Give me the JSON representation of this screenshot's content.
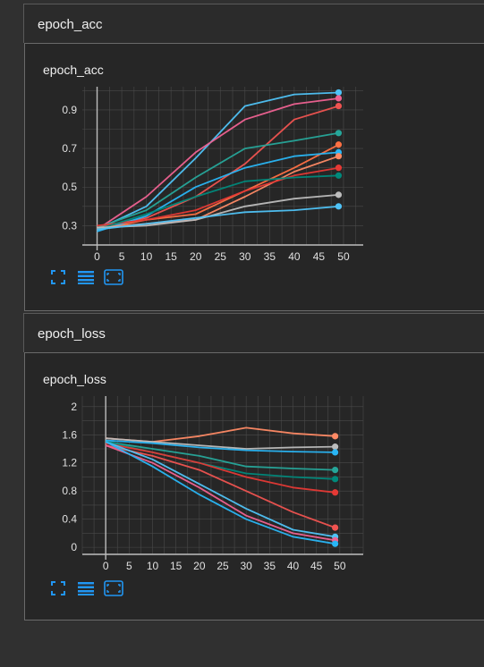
{
  "sections": [
    {
      "header": "epoch_acc",
      "card_title": "epoch_acc",
      "chart_data": {
        "type": "line",
        "title": "epoch_acc",
        "xlim": [
          -3,
          54
        ],
        "ylim": [
          0.2,
          1.02
        ],
        "xticks": [
          0,
          5,
          10,
          15,
          20,
          25,
          30,
          35,
          40,
          45,
          50
        ],
        "yticks": [
          0.3,
          0.5,
          0.7,
          0.9
        ],
        "ytick_labels": [
          "0.3",
          "0.5",
          "0.7",
          "0.9"
        ],
        "series": [
          {
            "color": "#4fc3f7",
            "x": [
              0,
              10,
              20,
              30,
              40,
              49
            ],
            "y": [
              0.28,
              0.4,
              0.65,
              0.92,
              0.98,
              0.99
            ]
          },
          {
            "color": "#f06292",
            "x": [
              0,
              10,
              20,
              30,
              40,
              49
            ],
            "y": [
              0.28,
              0.45,
              0.68,
              0.85,
              0.93,
              0.96
            ]
          },
          {
            "color": "#ef5350",
            "x": [
              0,
              10,
              20,
              30,
              40,
              49
            ],
            "y": [
              0.29,
              0.34,
              0.45,
              0.62,
              0.85,
              0.92
            ]
          },
          {
            "color": "#26a69a",
            "x": [
              0,
              10,
              20,
              30,
              40,
              49
            ],
            "y": [
              0.29,
              0.38,
              0.55,
              0.7,
              0.74,
              0.78
            ]
          },
          {
            "color": "#ff7043",
            "x": [
              0,
              10,
              20,
              30,
              40,
              49
            ],
            "y": [
              0.28,
              0.33,
              0.36,
              0.48,
              0.6,
              0.72
            ]
          },
          {
            "color": "#29b6f6",
            "x": [
              0,
              10,
              20,
              30,
              40,
              49
            ],
            "y": [
              0.27,
              0.35,
              0.5,
              0.6,
              0.66,
              0.68
            ]
          },
          {
            "color": "#ff8a65",
            "x": [
              0,
              10,
              20,
              30,
              40,
              49
            ],
            "y": [
              0.29,
              0.31,
              0.33,
              0.45,
              0.58,
              0.66
            ]
          },
          {
            "color": "#e53935",
            "x": [
              0,
              10,
              20,
              30,
              40,
              49
            ],
            "y": [
              0.3,
              0.33,
              0.38,
              0.48,
              0.56,
              0.6
            ]
          },
          {
            "color": "#00897b",
            "x": [
              0,
              10,
              20,
              30,
              40,
              49
            ],
            "y": [
              0.28,
              0.36,
              0.45,
              0.53,
              0.55,
              0.56
            ]
          },
          {
            "color": "#bdbdbd",
            "x": [
              0,
              10,
              20,
              30,
              40,
              49
            ],
            "y": [
              0.29,
              0.3,
              0.33,
              0.4,
              0.44,
              0.46
            ]
          },
          {
            "color": "#4fc3f7",
            "x": [
              0,
              10,
              20,
              30,
              40,
              49
            ],
            "y": [
              0.28,
              0.31,
              0.34,
              0.37,
              0.38,
              0.4
            ]
          }
        ]
      }
    },
    {
      "header": "epoch_loss",
      "card_title": "epoch_loss",
      "chart_data": {
        "type": "line",
        "title": "epoch_loss",
        "xlim": [
          -5,
          55
        ],
        "ylim": [
          -0.1,
          2.15
        ],
        "xticks": [
          0,
          5,
          10,
          15,
          20,
          25,
          30,
          35,
          40,
          45,
          50
        ],
        "yticks": [
          0,
          0.4,
          0.8,
          1.2,
          1.6,
          2
        ],
        "ytick_labels": [
          "0",
          "0.4",
          "0.8",
          "1.2",
          "1.6",
          "2"
        ],
        "series": [
          {
            "color": "#ff8a65",
            "x": [
              0,
              10,
              20,
              30,
              40,
              49
            ],
            "y": [
              1.55,
              1.5,
              1.58,
              1.7,
              1.62,
              1.58
            ]
          },
          {
            "color": "#bdbdbd",
            "x": [
              0,
              10,
              20,
              30,
              40,
              49
            ],
            "y": [
              1.55,
              1.5,
              1.45,
              1.4,
              1.42,
              1.43
            ]
          },
          {
            "color": "#29b6f6",
            "x": [
              0,
              10,
              20,
              30,
              40,
              49
            ],
            "y": [
              1.52,
              1.48,
              1.42,
              1.38,
              1.36,
              1.35
            ]
          },
          {
            "color": "#26a69a",
            "x": [
              0,
              10,
              20,
              30,
              40,
              49
            ],
            "y": [
              1.5,
              1.4,
              1.3,
              1.15,
              1.12,
              1.1
            ]
          },
          {
            "color": "#00897b",
            "x": [
              0,
              10,
              20,
              30,
              40,
              49
            ],
            "y": [
              1.5,
              1.35,
              1.2,
              1.05,
              1.0,
              0.97
            ]
          },
          {
            "color": "#e53935",
            "x": [
              0,
              10,
              20,
              30,
              40,
              49
            ],
            "y": [
              1.48,
              1.35,
              1.2,
              1.0,
              0.85,
              0.78
            ]
          },
          {
            "color": "#ef5350",
            "x": [
              0,
              10,
              20,
              30,
              40,
              49
            ],
            "y": [
              1.45,
              1.3,
              1.1,
              0.8,
              0.5,
              0.28
            ]
          },
          {
            "color": "#4fc3f7",
            "x": [
              0,
              10,
              20,
              30,
              40,
              49
            ],
            "y": [
              1.5,
              1.25,
              0.9,
              0.55,
              0.25,
              0.15
            ]
          },
          {
            "color": "#f06292",
            "x": [
              0,
              10,
              20,
              30,
              40,
              49
            ],
            "y": [
              1.45,
              1.2,
              0.85,
              0.45,
              0.2,
              0.1
            ]
          },
          {
            "color": "#29b6f6",
            "x": [
              0,
              10,
              20,
              30,
              40,
              49
            ],
            "y": [
              1.5,
              1.15,
              0.75,
              0.4,
              0.15,
              0.05
            ]
          }
        ]
      }
    }
  ],
  "toolbar": {
    "icons": [
      "fullscreen-icon",
      "data-table-icon",
      "fit-domain-icon"
    ],
    "accent": "#2196f3"
  },
  "colors": {
    "background": "#303030",
    "card": "#262626",
    "grid": "#4a4a4a",
    "axis": "#bdbdbd",
    "tick_text": "#e0e0e0"
  }
}
